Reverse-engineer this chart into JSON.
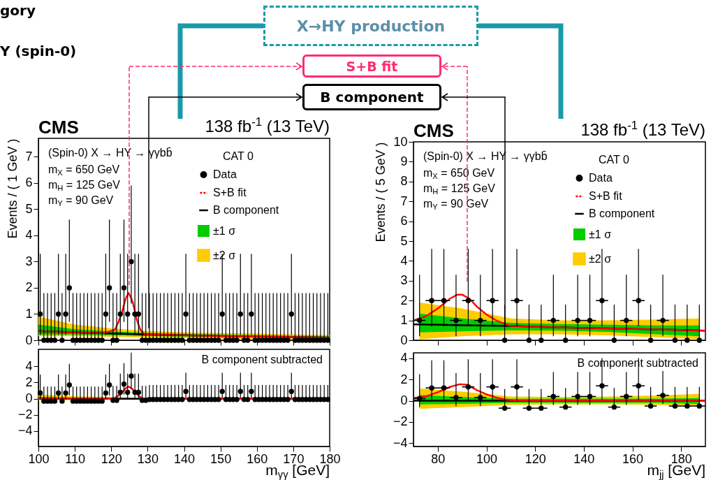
{
  "chart_data": [
    {
      "type": "scatter",
      "ylabel": "Events / ( 1 GeV )",
      "legend_title": "CAT 0",
      "legend": "top right",
      "tick_labels": "y",
      "annotations": [
        "CMS",
        "138 fb$^{-1}$ (13 TeV)",
        "(Spin-0) X → HY → γγbb̄",
        "m$_{X}$ = 650 GeV",
        "m$_{H}$ = 125 GeV",
        "m$_{Y}$ = 90 GeV"
      ],
      "xlim": [
        100,
        180
      ],
      "xticks": [
        100,
        110,
        120,
        130,
        140,
        150,
        160,
        170,
        180
      ],
      "ylim": [
        0,
        7.7
      ],
      "yticks": [
        0,
        1,
        2,
        3,
        4,
        5,
        6,
        7
      ],
      "series": [
        {
          "name": "Data",
          "type": "scatter",
          "color": "#000000",
          "x": [
            100.5,
            101.5,
            102.5,
            103.5,
            104.5,
            105.5,
            106.5,
            107.5,
            108.5,
            109.5,
            110.5,
            111.5,
            112.5,
            113.5,
            114.5,
            115.5,
            116.5,
            117.5,
            118.5,
            119.5,
            120.5,
            121.5,
            122.5,
            123.5,
            124.5,
            125.5,
            126.5,
            127.5,
            128.5,
            129.5,
            130.5,
            131.5,
            132.5,
            133.5,
            134.5,
            135.5,
            136.5,
            137.5,
            138.5,
            139.5,
            140.5,
            141.5,
            142.5,
            143.5,
            144.5,
            145.5,
            146.5,
            147.5,
            148.5,
            149.5,
            150.5,
            151.5,
            152.5,
            153.5,
            154.5,
            155.5,
            156.5,
            157.5,
            158.5,
            159.5,
            160.5,
            161.5,
            162.5,
            163.5,
            164.5,
            165.5,
            166.5,
            167.5,
            168.5,
            169.5,
            170.5,
            171.5,
            172.5,
            173.5,
            174.5,
            175.5,
            176.5,
            177.5,
            178.5,
            179.5
          ],
          "values": [
            1,
            0,
            0,
            0,
            0,
            1,
            0,
            1,
            2,
            0,
            0,
            0,
            0,
            0,
            0,
            0,
            0,
            0,
            1,
            2,
            0,
            0,
            1,
            2,
            1,
            3,
            1,
            1,
            0,
            0,
            0,
            0,
            0,
            0,
            0,
            0,
            0,
            0,
            0,
            0,
            1,
            0,
            0,
            0,
            0,
            0,
            0,
            0,
            0,
            0,
            1,
            0,
            0,
            0,
            0,
            1,
            0,
            0,
            1,
            0,
            0,
            0,
            0,
            0,
            0,
            0,
            0,
            0,
            0,
            1,
            0,
            0,
            0,
            0,
            0,
            0,
            0,
            0,
            0,
            0
          ],
          "errors": [
            [
              0.2,
              3.3
            ],
            [
              0,
              1.8
            ],
            [
              0,
              1.8
            ],
            [
              0,
              1.8
            ],
            [
              0,
              1.8
            ],
            [
              0.2,
              3.3
            ],
            [
              0,
              1.8
            ],
            [
              0.2,
              3.3
            ],
            [
              0.7,
              4.6
            ],
            [
              0,
              1.8
            ],
            [
              0,
              1.8
            ],
            [
              0,
              1.8
            ],
            [
              0,
              1.8
            ],
            [
              0,
              1.8
            ],
            [
              0,
              1.8
            ],
            [
              0,
              1.8
            ],
            [
              0,
              1.8
            ],
            [
              0,
              1.8
            ],
            [
              0.2,
              3.3
            ],
            [
              0.7,
              4.6
            ],
            [
              0,
              1.8
            ],
            [
              0,
              1.8
            ],
            [
              0.2,
              3.3
            ],
            [
              0.7,
              4.6
            ],
            [
              0.2,
              3.3
            ],
            [
              1.4,
              5.9
            ],
            [
              0.2,
              3.3
            ],
            [
              0.2,
              3.3
            ],
            [
              0,
              1.8
            ],
            [
              0,
              1.8
            ],
            [
              0,
              1.8
            ],
            [
              0,
              1.8
            ],
            [
              0,
              1.8
            ],
            [
              0,
              1.8
            ],
            [
              0,
              1.8
            ],
            [
              0,
              1.8
            ],
            [
              0,
              1.8
            ],
            [
              0,
              1.8
            ],
            [
              0,
              1.8
            ],
            [
              0,
              1.8
            ],
            [
              0.2,
              3.3
            ],
            [
              0,
              1.8
            ],
            [
              0,
              1.8
            ],
            [
              0,
              1.8
            ],
            [
              0,
              1.8
            ],
            [
              0,
              1.8
            ],
            [
              0,
              1.8
            ],
            [
              0,
              1.8
            ],
            [
              0,
              1.8
            ],
            [
              0,
              1.8
            ],
            [
              0.2,
              3.3
            ],
            [
              0,
              1.8
            ],
            [
              0,
              1.8
            ],
            [
              0,
              1.8
            ],
            [
              0,
              1.8
            ],
            [
              0.2,
              3.3
            ],
            [
              0,
              1.8
            ],
            [
              0,
              1.8
            ],
            [
              0.2,
              3.3
            ],
            [
              0,
              1.8
            ],
            [
              0,
              1.8
            ],
            [
              0,
              1.8
            ],
            [
              0,
              1.8
            ],
            [
              0,
              1.8
            ],
            [
              0,
              1.8
            ],
            [
              0,
              1.8
            ],
            [
              0,
              1.8
            ],
            [
              0,
              1.8
            ],
            [
              0,
              1.8
            ],
            [
              0.2,
              3.3
            ],
            [
              0,
              1.8
            ],
            [
              0,
              1.8
            ],
            [
              0,
              1.8
            ],
            [
              0,
              1.8
            ],
            [
              0,
              1.8
            ],
            [
              0,
              1.8
            ],
            [
              0,
              1.8
            ],
            [
              0,
              1.8
            ],
            [
              0,
              1.8
            ],
            [
              0,
              1.8
            ]
          ]
        },
        {
          "name": "S+B fit",
          "type": "line",
          "color": "#ff0000",
          "line_style": "dotted",
          "x": [
            100,
            110,
            118,
            121,
            122,
            123,
            124,
            124.8,
            125.5,
            126,
            127,
            128,
            129,
            130,
            140,
            150,
            160,
            170,
            180
          ],
          "values": [
            0.35,
            0.3,
            0.27,
            0.4,
            0.7,
            1.1,
            1.6,
            1.8,
            1.6,
            1.4,
            0.8,
            0.4,
            0.25,
            0.22,
            0.19,
            0.16,
            0.14,
            0.12,
            0.1
          ]
        },
        {
          "name": "B component",
          "type": "line",
          "color": "#000000",
          "line_style": "solid",
          "x": [
            100,
            110,
            120,
            130,
            140,
            150,
            160,
            170,
            180
          ],
          "values": [
            0.35,
            0.3,
            0.26,
            0.22,
            0.19,
            0.16,
            0.14,
            0.12,
            0.1
          ]
        },
        {
          "name": "±1 σ",
          "type": "line",
          "color": "#00cc00",
          "x": [
            100,
            110,
            120,
            130,
            140,
            150,
            160,
            170,
            180
          ],
          "values": [
            null,
            null,
            null,
            null,
            null,
            null,
            null,
            null,
            null
          ],
          "lower": [
            0.22,
            0.22,
            0.19,
            0.16,
            0.14,
            0.12,
            0.1,
            0.08,
            0.06
          ],
          "upper": [
            0.6,
            0.42,
            0.34,
            0.28,
            0.24,
            0.21,
            0.19,
            0.17,
            0.15
          ]
        },
        {
          "name": "±2 σ",
          "type": "line",
          "color": "#ffcc00",
          "x": [
            100,
            110,
            120,
            130,
            140,
            150,
            160,
            170,
            180
          ],
          "values": [
            null,
            null,
            null,
            null,
            null,
            null,
            null,
            null,
            null
          ],
          "lower": [
            0.15,
            0.15,
            0.13,
            0.1,
            0.08,
            0.06,
            0.04,
            0.02,
            0
          ],
          "upper": [
            0.9,
            0.6,
            0.45,
            0.35,
            0.3,
            0.27,
            0.25,
            0.22,
            0.2
          ]
        }
      ]
    },
    {
      "type": "scatter",
      "xlabel": "m$_{γγ}$ [GeV]",
      "annotations": [
        "B component subtracted"
      ],
      "xlim": [
        100,
        180
      ],
      "xticks": [
        100,
        110,
        120,
        130,
        140,
        150,
        160,
        170,
        180
      ],
      "ylim": [
        -5.9,
        6.1
      ],
      "yticks": [
        -4,
        -2,
        0,
        2,
        4
      ],
      "series": [
        {
          "type": "scatter",
          "color": "#000000",
          "x": [
            100.5,
            101.5,
            102.5,
            103.5,
            104.5,
            105.5,
            106.5,
            107.5,
            108.5,
            109.5,
            110.5,
            111.5,
            112.5,
            113.5,
            114.5,
            115.5,
            116.5,
            117.5,
            118.5,
            119.5,
            120.5,
            121.5,
            122.5,
            123.5,
            124.5,
            125.5,
            126.5,
            127.5,
            128.5,
            129.5,
            130.5,
            131.5,
            132.5,
            133.5,
            134.5,
            135.5,
            136.5,
            137.5,
            138.5,
            139.5,
            140.5,
            141.5,
            142.5,
            143.5,
            144.5,
            145.5,
            146.5,
            147.5,
            148.5,
            149.5,
            150.5,
            151.5,
            152.5,
            153.5,
            154.5,
            155.5,
            156.5,
            157.5,
            158.5,
            159.5,
            160.5,
            161.5,
            162.5,
            163.5,
            164.5,
            165.5,
            166.5,
            167.5,
            168.5,
            169.5,
            170.5,
            171.5,
            172.5,
            173.5,
            174.5,
            175.5,
            176.5,
            177.5,
            178.5,
            179.5
          ],
          "values": [
            0.7,
            -0.3,
            -0.3,
            -0.3,
            -0.3,
            0.7,
            -0.3,
            0.7,
            1.7,
            -0.3,
            -0.3,
            -0.3,
            -0.3,
            -0.3,
            -0.3,
            -0.3,
            -0.3,
            -0.3,
            0.7,
            1.7,
            -0.2,
            -0.2,
            0.8,
            1.8,
            0.8,
            2.8,
            0.8,
            0.8,
            -0.2,
            -0.2,
            -0.1,
            -0.1,
            -0.1,
            -0.1,
            -0.1,
            -0.1,
            -0.1,
            -0.1,
            -0.1,
            -0.1,
            0.9,
            -0.1,
            -0.1,
            -0.1,
            -0.1,
            -0.1,
            -0.1,
            -0.1,
            -0.1,
            -0.1,
            0.9,
            -0.1,
            -0.1,
            -0.1,
            -0.1,
            0.9,
            -0.1,
            -0.1,
            0.9,
            -0.1,
            -0.1,
            -0.1,
            -0.1,
            -0.1,
            -0.1,
            -0.1,
            -0.1,
            -0.1,
            -0.1,
            0.9,
            -0.1,
            -0.1,
            -0.1,
            -0.1,
            -0.1,
            -0.1,
            -0.1,
            -0.1,
            -0.1,
            -0.1
          ],
          "errors": [
            [
              -0.1,
              3.0
            ],
            [
              -0.3,
              1.5
            ],
            [
              -0.3,
              1.5
            ],
            [
              -0.3,
              1.5
            ],
            [
              -0.3,
              1.5
            ],
            [
              -0.1,
              3.0
            ],
            [
              -0.3,
              1.5
            ],
            [
              -0.1,
              3.0
            ],
            [
              0.4,
              4.3
            ],
            [
              -0.3,
              1.5
            ],
            [
              -0.3,
              1.5
            ],
            [
              -0.3,
              1.5
            ],
            [
              -0.3,
              1.5
            ],
            [
              -0.3,
              1.5
            ],
            [
              -0.3,
              1.5
            ],
            [
              -0.3,
              1.5
            ],
            [
              -0.3,
              1.5
            ],
            [
              -0.3,
              1.5
            ],
            [
              -0.1,
              3.0
            ],
            [
              0.4,
              4.3
            ],
            [
              -0.2,
              1.6
            ],
            [
              -0.2,
              1.6
            ],
            [
              0,
              3.1
            ],
            [
              0.5,
              4.4
            ],
            [
              0,
              3.1
            ],
            [
              1.2,
              5.7
            ],
            [
              0,
              3.1
            ],
            [
              0,
              3.1
            ],
            [
              -0.2,
              1.6
            ],
            [
              -0.2,
              1.6
            ],
            [
              -0.1,
              1.7
            ],
            [
              -0.1,
              1.7
            ],
            [
              -0.1,
              1.7
            ],
            [
              -0.1,
              1.7
            ],
            [
              -0.1,
              1.7
            ],
            [
              -0.1,
              1.7
            ],
            [
              -0.1,
              1.7
            ],
            [
              -0.1,
              1.7
            ],
            [
              -0.1,
              1.7
            ],
            [
              -0.1,
              1.7
            ],
            [
              0.1,
              3.2
            ],
            [
              -0.1,
              1.7
            ],
            [
              -0.1,
              1.7
            ],
            [
              -0.1,
              1.7
            ],
            [
              -0.1,
              1.7
            ],
            [
              -0.1,
              1.7
            ],
            [
              -0.1,
              1.7
            ],
            [
              -0.1,
              1.7
            ],
            [
              -0.1,
              1.7
            ],
            [
              -0.1,
              1.7
            ],
            [
              0.1,
              3.2
            ],
            [
              -0.1,
              1.7
            ],
            [
              -0.1,
              1.7
            ],
            [
              -0.1,
              1.7
            ],
            [
              -0.1,
              1.7
            ],
            [
              0.1,
              3.2
            ],
            [
              -0.1,
              1.7
            ],
            [
              -0.1,
              1.7
            ],
            [
              0.1,
              3.2
            ],
            [
              -0.1,
              1.7
            ],
            [
              -0.1,
              1.7
            ],
            [
              -0.1,
              1.7
            ],
            [
              -0.1,
              1.7
            ],
            [
              -0.1,
              1.7
            ],
            [
              -0.1,
              1.7
            ],
            [
              -0.1,
              1.7
            ],
            [
              -0.1,
              1.7
            ],
            [
              -0.1,
              1.7
            ],
            [
              -0.1,
              1.7
            ],
            [
              0.1,
              3.2
            ],
            [
              -0.1,
              1.7
            ],
            [
              -0.1,
              1.7
            ],
            [
              -0.1,
              1.7
            ],
            [
              -0.1,
              1.7
            ],
            [
              -0.1,
              1.7
            ],
            [
              -0.1,
              1.7
            ],
            [
              -0.1,
              1.7
            ],
            [
              -0.1,
              1.7
            ],
            [
              -0.1,
              1.7
            ],
            [
              -0.1,
              1.7
            ]
          ]
        },
        {
          "type": "line",
          "color": "#ff0000",
          "line_style": "dotted",
          "x": [
            100,
            120,
            121,
            122,
            123,
            124,
            124.8,
            125.5,
            126,
            127,
            128,
            129,
            130,
            180
          ],
          "values": [
            0,
            0,
            0.1,
            0.4,
            0.8,
            1.3,
            1.5,
            1.3,
            1.1,
            0.6,
            0.2,
            0,
            0,
            0
          ]
        },
        {
          "type": "line",
          "color": "#000000",
          "line_style": "solid",
          "x": [
            100,
            180
          ],
          "values": [
            0,
            0
          ]
        },
        {
          "type": "line",
          "color": "#00cc00",
          "x": [
            100,
            110,
            120,
            130,
            180
          ],
          "values": [
            null,
            null,
            null,
            null,
            null
          ],
          "lower": [
            -0.1,
            -0.08,
            -0.06,
            -0.06,
            -0.06
          ],
          "upper": [
            0.25,
            0.12,
            0.06,
            0.06,
            0.06
          ]
        },
        {
          "type": "line",
          "color": "#ffcc00",
          "x": [
            100,
            110,
            120,
            130,
            180
          ],
          "values": [
            null,
            null,
            null,
            null,
            null
          ],
          "lower": [
            -0.2,
            -0.15,
            -0.12,
            -0.1,
            -0.1
          ],
          "upper": [
            0.5,
            0.3,
            0.2,
            0.12,
            0.12
          ]
        }
      ]
    },
    {
      "type": "scatter",
      "ylabel": "Events / ( 5 GeV )",
      "legend_title": "CAT 0",
      "legend": "top right",
      "tick_labels": "y",
      "annotations": [
        "CMS",
        "138 fb$^{-1}$ (13 TeV)",
        "(Spin-0) X → HY → γγbb̄",
        "m$_{X}$ = 650 GeV",
        "m$_{H}$ = 125 GeV",
        "m$_{Y}$ = 90 GeV"
      ],
      "xlim": [
        70,
        190
      ],
      "xticks": [
        80,
        100,
        120,
        140,
        160,
        180
      ],
      "ylim": [
        0,
        10
      ],
      "yticks": [
        0,
        1,
        2,
        3,
        4,
        5,
        6,
        7,
        8,
        9,
        10
      ],
      "series": [
        {
          "name": "Data",
          "type": "scatter",
          "color": "#000000",
          "x": [
            72.5,
            77.5,
            82.5,
            87.5,
            92.5,
            97.5,
            102.5,
            107.5,
            112.5,
            117.5,
            122.5,
            127.5,
            132.5,
            137.5,
            142.5,
            147.5,
            152.5,
            157.5,
            162.5,
            167.5,
            172.5,
            177.5,
            182.5,
            187.5
          ],
          "values": [
            1,
            2,
            2,
            1,
            2,
            1,
            2,
            0,
            2,
            0,
            0,
            1,
            0,
            1,
            1,
            2,
            0,
            1,
            2,
            0,
            1,
            0,
            0,
            0
          ],
          "errors": [
            [
              0.2,
              3.3
            ],
            [
              0.7,
              4.6
            ],
            [
              0.7,
              4.6
            ],
            [
              0.2,
              3.3
            ],
            [
              0.7,
              4.6
            ],
            [
              0.2,
              3.3
            ],
            [
              0.7,
              4.6
            ],
            [
              0,
              1.8
            ],
            [
              0.7,
              4.6
            ],
            [
              0,
              1.8
            ],
            [
              0,
              1.8
            ],
            [
              0.2,
              3.3
            ],
            [
              0,
              1.8
            ],
            [
              0.2,
              3.3
            ],
            [
              0.2,
              3.3
            ],
            [
              0.7,
              4.6
            ],
            [
              0,
              1.8
            ],
            [
              0.2,
              3.3
            ],
            [
              0.7,
              4.6
            ],
            [
              0,
              1.8
            ],
            [
              0.2,
              3.3
            ],
            [
              0,
              1.8
            ],
            [
              0,
              1.8
            ],
            [
              0,
              1.8
            ]
          ],
          "xerrors": [
            2.5,
            2.5,
            2.5,
            2.5,
            2.5,
            2.5,
            2.5,
            null,
            2.5,
            null,
            null,
            2.5,
            null,
            2.5,
            2.5,
            2.5,
            null,
            2.5,
            2.5,
            null,
            2.5,
            null,
            null,
            null
          ]
        },
        {
          "name": "S+B fit",
          "type": "line",
          "color": "#ff0000",
          "line_style": "dotted",
          "x": [
            70,
            75,
            80,
            85,
            88,
            90,
            93,
            96,
            100,
            104,
            108,
            110,
            120,
            130,
            140,
            150,
            160,
            170,
            180,
            190
          ],
          "values": [
            1.0,
            1.2,
            1.6,
            2.1,
            2.3,
            2.3,
            2.1,
            1.7,
            1.3,
            1.0,
            0.8,
            0.73,
            0.68,
            0.65,
            0.62,
            0.6,
            0.57,
            0.55,
            0.52,
            0.48
          ]
        },
        {
          "name": "B component",
          "type": "line",
          "color": "#000000",
          "line_style": "solid",
          "x": [
            70,
            80,
            90,
            100,
            110,
            120,
            130,
            140,
            150,
            160,
            170,
            180,
            190
          ],
          "values": [
            0.8,
            0.78,
            0.76,
            0.74,
            0.72,
            0.68,
            0.65,
            0.62,
            0.6,
            0.57,
            0.55,
            0.52,
            0.48
          ]
        },
        {
          "name": "±1 σ",
          "type": "line",
          "color": "#00cc00",
          "x": [
            72.5,
            90,
            110,
            130,
            150,
            170,
            187.5
          ],
          "values": [
            null,
            null,
            null,
            null,
            null,
            null,
            null
          ],
          "lower": [
            0.4,
            0.45,
            0.5,
            0.48,
            0.42,
            0.3,
            0.2
          ],
          "upper": [
            1.35,
            1.1,
            0.88,
            0.82,
            0.78,
            0.75,
            0.75
          ]
        },
        {
          "name": "±2 σ",
          "type": "line",
          "color": "#ffcc00",
          "x": [
            72.5,
            90,
            110,
            130,
            150,
            170,
            187.5
          ],
          "values": [
            null,
            null,
            null,
            null,
            null,
            null,
            null
          ],
          "lower": [
            0.05,
            0.2,
            0.3,
            0.3,
            0.25,
            0.15,
            0.05
          ],
          "upper": [
            1.9,
            1.6,
            1.1,
            1.0,
            1.0,
            1.05,
            1.1
          ]
        }
      ]
    },
    {
      "type": "scatter",
      "xlabel": "m$_{jj}$ [GeV]",
      "annotations": [
        "B component subtracted"
      ],
      "xlim": [
        70,
        190
      ],
      "xticks": [
        80,
        100,
        120,
        140,
        160,
        180
      ],
      "ylim": [
        -4.3,
        4.5
      ],
      "yticks": [
        -4,
        -2,
        0,
        2,
        4
      ],
      "series": [
        {
          "type": "scatter",
          "color": "#000000",
          "x": [
            72.5,
            77.5,
            82.5,
            87.5,
            92.5,
            97.5,
            102.5,
            107.5,
            112.5,
            117.5,
            122.5,
            127.5,
            132.5,
            137.5,
            142.5,
            147.5,
            152.5,
            157.5,
            162.5,
            167.5,
            172.5,
            177.5,
            182.5,
            187.5
          ],
          "values": [
            0.2,
            1.2,
            1.2,
            0.3,
            1.3,
            0.3,
            1.3,
            -0.7,
            1.3,
            -0.7,
            -0.7,
            0.4,
            -0.6,
            0.4,
            0.4,
            1.4,
            -0.6,
            0.4,
            1.4,
            -0.5,
            0.5,
            -0.5,
            -0.5,
            -0.5
          ],
          "errors": [
            [
              -0.6,
              2.5
            ],
            [
              -0.1,
              3.8
            ],
            [
              -0.1,
              3.8
            ],
            [
              -0.5,
              2.6
            ],
            [
              0,
              3.9
            ],
            [
              -0.5,
              2.6
            ],
            [
              0,
              3.9
            ],
            [
              -0.7,
              1.1
            ],
            [
              0,
              3.9
            ],
            [
              -0.7,
              1.1
            ],
            [
              -0.7,
              1.1
            ],
            [
              -0.4,
              2.7
            ],
            [
              -0.6,
              1.2
            ],
            [
              -0.4,
              2.7
            ],
            [
              -0.4,
              2.7
            ],
            [
              0.1,
              4.0
            ],
            [
              -0.6,
              1.2
            ],
            [
              -0.4,
              2.7
            ],
            [
              0.1,
              4.0
            ],
            [
              -0.5,
              1.3
            ],
            [
              -0.3,
              2.8
            ],
            [
              -0.5,
              1.3
            ],
            [
              -0.5,
              1.3
            ],
            [
              -0.5,
              1.3
            ]
          ],
          "xerrors": [
            2.5,
            2.5,
            2.5,
            2.5,
            2.5,
            2.5,
            2.5,
            2.5,
            2.5,
            2.5,
            2.5,
            2.5,
            2.5,
            2.5,
            2.5,
            2.5,
            2.5,
            2.5,
            2.5,
            2.5,
            2.5,
            2.5,
            2.5,
            2.5
          ]
        },
        {
          "type": "line",
          "color": "#ff0000",
          "line_style": "dotted",
          "x": [
            70,
            75,
            80,
            85,
            89,
            92,
            96,
            100,
            104,
            108,
            112,
            190
          ],
          "values": [
            0.25,
            0.4,
            0.8,
            1.3,
            1.55,
            1.5,
            1.0,
            0.6,
            0.3,
            0.1,
            0.02,
            0
          ]
        },
        {
          "type": "line",
          "color": "#000000",
          "line_style": "solid",
          "x": [
            70,
            190
          ],
          "values": [
            0,
            0
          ]
        },
        {
          "type": "line",
          "color": "#00cc00",
          "x": [
            72.5,
            90,
            110,
            130,
            150,
            170,
            187.5
          ],
          "values": [
            null,
            null,
            null,
            null,
            null,
            null,
            null
          ],
          "lower": [
            -0.35,
            -0.3,
            -0.2,
            -0.2,
            -0.2,
            -0.2,
            -0.3
          ],
          "upper": [
            0.55,
            0.35,
            0.18,
            0.2,
            0.2,
            0.2,
            0.25
          ]
        },
        {
          "type": "line",
          "color": "#ffcc00",
          "x": [
            72.5,
            90,
            110,
            130,
            150,
            170,
            187.5
          ],
          "values": [
            null,
            null,
            null,
            null,
            null,
            null,
            null
          ],
          "lower": [
            -0.75,
            -0.6,
            -0.4,
            -0.35,
            -0.35,
            -0.4,
            -0.5
          ],
          "upper": [
            1.15,
            0.85,
            0.4,
            0.35,
            0.4,
            0.5,
            0.65
          ]
        }
      ]
    },
    {
      "type": "other",
      "annotations": [
        "gory",
        "Y (spin-0)",
        "X→HY production",
        "S+B fit",
        "B component"
      ]
    }
  ]
}
